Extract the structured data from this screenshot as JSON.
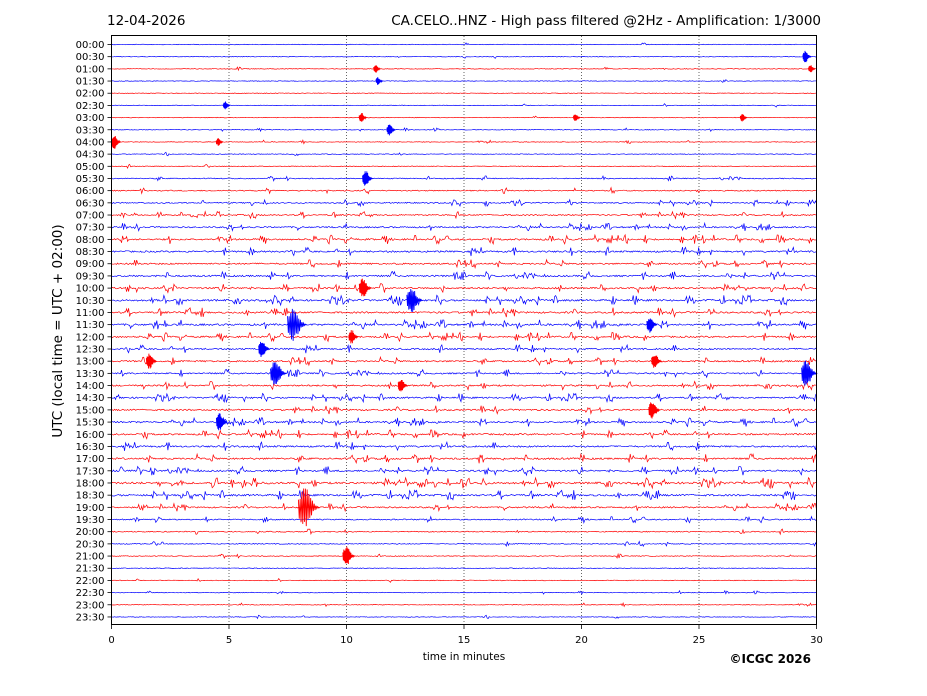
{
  "header": {
    "date": "12-04-2026",
    "title": "CA.CELO..HNZ - High pass filtered @2Hz - Amplification: 1/3000"
  },
  "footer": {
    "copyright": "©ICGC 2026"
  },
  "colors": {
    "trace_a": "#ff0000",
    "trace_b": "#0000ff",
    "grid": "#000000"
  },
  "chart_data": {
    "type": "line",
    "title": "CA.CELO..HNZ - High pass filtered @2Hz - Amplification: 1/3000",
    "xlabel": "time in minutes",
    "ylabel": "UTC (local time = UTC + 02:00)",
    "xlim": [
      0,
      30
    ],
    "x_ticks": [
      0,
      5,
      10,
      15,
      20,
      25,
      30
    ],
    "x_tick_labels": [
      "0",
      "5",
      "10",
      "15",
      "20",
      "25",
      "30"
    ],
    "grid": "vertical dotted at 5, 10, 15, 20, 25",
    "row_labels": [
      "00:00",
      "00:30",
      "01:00",
      "01:30",
      "02:00",
      "02:30",
      "03:00",
      "03:30",
      "04:00",
      "04:30",
      "05:00",
      "05:30",
      "06:00",
      "06:30",
      "07:00",
      "07:30",
      "08:00",
      "08:30",
      "09:00",
      "09:30",
      "10:00",
      "10:30",
      "11:00",
      "11:30",
      "12:00",
      "12:30",
      "13:00",
      "13:30",
      "14:00",
      "14:30",
      "15:00",
      "15:30",
      "16:00",
      "16:30",
      "17:00",
      "17:30",
      "18:00",
      "18:30",
      "19:00",
      "19:30",
      "20:00",
      "20:30",
      "21:00",
      "21:30",
      "22:00",
      "22:30",
      "23:00",
      "23:30"
    ],
    "row_colors": [
      "blue",
      "blue",
      "red",
      "blue",
      "red",
      "blue",
      "red",
      "blue",
      "red",
      "blue",
      "red",
      "blue",
      "red",
      "blue",
      "red",
      "blue",
      "red",
      "blue",
      "red",
      "blue",
      "red",
      "blue",
      "red",
      "blue",
      "red",
      "blue",
      "red",
      "blue",
      "red",
      "blue",
      "red",
      "blue",
      "red",
      "blue",
      "red",
      "blue",
      "red",
      "blue",
      "red",
      "blue",
      "red",
      "blue",
      "red",
      "blue",
      "red",
      "blue",
      "red",
      "blue"
    ],
    "activity": [
      0.05,
      0.05,
      0.06,
      0.05,
      0.05,
      0.05,
      0.05,
      0.06,
      0.07,
      0.07,
      0.1,
      0.22,
      0.3,
      0.35,
      0.4,
      0.5,
      0.62,
      0.6,
      0.55,
      0.58,
      0.6,
      0.7,
      0.65,
      0.7,
      0.6,
      0.55,
      0.55,
      0.5,
      0.55,
      0.55,
      0.55,
      0.6,
      0.6,
      0.6,
      0.65,
      0.6,
      0.75,
      0.7,
      0.5,
      0.35,
      0.25,
      0.2,
      0.15,
      0.12,
      0.08,
      0.07,
      0.06,
      0.05
    ],
    "events": [
      {
        "row": 1,
        "x": 29.6,
        "amp": 6
      },
      {
        "row": 2,
        "x": 11.3,
        "amp": 4
      },
      {
        "row": 2,
        "x": 29.8,
        "amp": 4
      },
      {
        "row": 3,
        "x": 11.4,
        "amp": 4
      },
      {
        "row": 5,
        "x": 4.9,
        "amp": 4
      },
      {
        "row": 6,
        "x": 10.7,
        "amp": 5
      },
      {
        "row": 6,
        "x": 19.8,
        "amp": 4
      },
      {
        "row": 6,
        "x": 26.9,
        "amp": 4
      },
      {
        "row": 7,
        "x": 11.9,
        "amp": 6
      },
      {
        "row": 8,
        "x": 0.2,
        "amp": 7
      },
      {
        "row": 8,
        "x": 4.6,
        "amp": 4
      },
      {
        "row": 11,
        "x": 10.9,
        "amp": 8
      },
      {
        "row": 20,
        "x": 10.8,
        "amp": 10
      },
      {
        "row": 21,
        "x": 12.9,
        "amp": 14
      },
      {
        "row": 23,
        "x": 7.9,
        "amp": 18
      },
      {
        "row": 23,
        "x": 23.0,
        "amp": 8
      },
      {
        "row": 24,
        "x": 10.3,
        "amp": 7
      },
      {
        "row": 25,
        "x": 6.5,
        "amp": 9
      },
      {
        "row": 26,
        "x": 1.7,
        "amp": 8
      },
      {
        "row": 26,
        "x": 23.2,
        "amp": 8
      },
      {
        "row": 27,
        "x": 7.1,
        "amp": 14
      },
      {
        "row": 27,
        "x": 29.7,
        "amp": 14
      },
      {
        "row": 28,
        "x": 12.4,
        "amp": 7
      },
      {
        "row": 30,
        "x": 23.1,
        "amp": 9
      },
      {
        "row": 31,
        "x": 4.7,
        "amp": 9
      },
      {
        "row": 38,
        "x": 8.4,
        "amp": 20
      },
      {
        "row": 42,
        "x": 10.1,
        "amp": 10
      }
    ]
  }
}
